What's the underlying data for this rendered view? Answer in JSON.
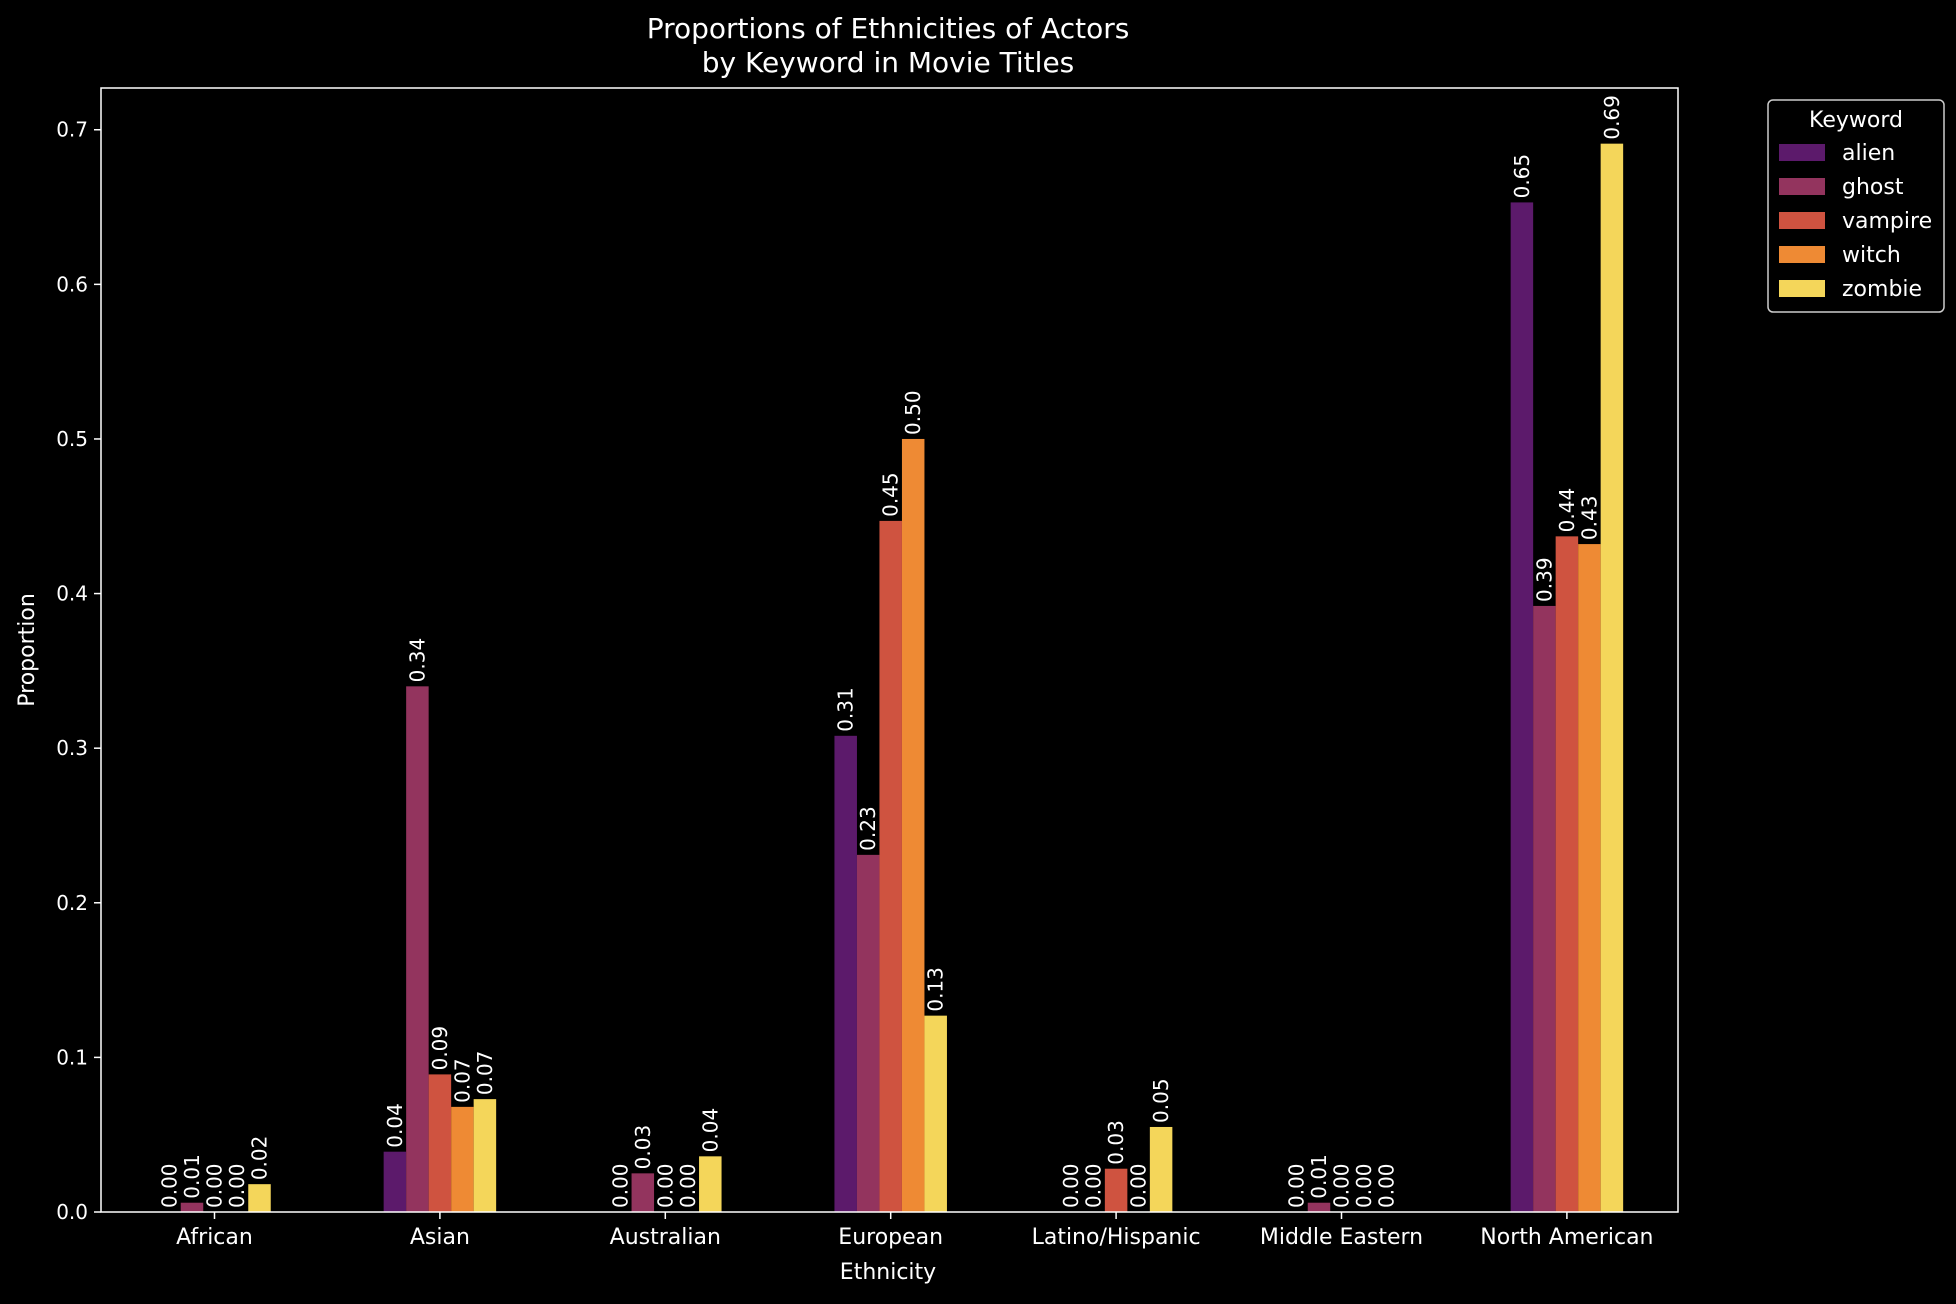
{
  "chart_data": {
    "type": "bar",
    "title_line1": "Proportions of Ethnicities of Actors",
    "title_line2": "by Keyword in Movie Titles",
    "xlabel": "Ethnicity",
    "ylabel": "Proportion",
    "ylim": [
      0,
      0.727
    ],
    "yticks": [
      "0.0",
      "0.1",
      "0.2",
      "0.3",
      "0.4",
      "0.5",
      "0.6",
      "0.7"
    ],
    "grid": false,
    "categories": [
      "African",
      "Asian",
      "Australian",
      "European",
      "Latino/Hispanic",
      "Middle Eastern",
      "North American"
    ],
    "legend": {
      "title": "Keyword",
      "placement": "outside top-right"
    },
    "series": [
      {
        "name": "alien",
        "color": "#5c1a6b",
        "values": [
          0.0,
          0.039,
          0.0,
          0.308,
          0.0,
          0.0,
          0.653
        ],
        "labels": [
          "0.00",
          "0.04",
          "0.00",
          "0.31",
          "0.00",
          "0.00",
          "0.65"
        ]
      },
      {
        "name": "ghost",
        "color": "#93345e",
        "values": [
          0.006,
          0.34,
          0.025,
          0.231,
          0.0,
          0.006,
          0.392
        ],
        "labels": [
          "0.01",
          "0.34",
          "0.03",
          "0.23",
          "0.00",
          "0.01",
          "0.39"
        ]
      },
      {
        "name": "vampire",
        "color": "#cf5340",
        "values": [
          0.0,
          0.089,
          0.0,
          0.447,
          0.028,
          0.0,
          0.437
        ],
        "labels": [
          "0.00",
          "0.09",
          "0.00",
          "0.45",
          "0.03",
          "0.00",
          "0.44"
        ]
      },
      {
        "name": "witch",
        "color": "#ee8a34",
        "values": [
          0.0,
          0.068,
          0.0,
          0.5,
          0.0,
          0.0,
          0.432
        ],
        "labels": [
          "0.00",
          "0.07",
          "0.00",
          "0.50",
          "0.00",
          "0.00",
          "0.43"
        ]
      },
      {
        "name": "zombie",
        "color": "#f4d65a",
        "values": [
          0.018,
          0.073,
          0.036,
          0.127,
          0.055,
          0.0,
          0.691
        ],
        "labels": [
          "0.02",
          "0.07",
          "0.04",
          "0.13",
          "0.05",
          "0.00",
          "0.69"
        ]
      }
    ]
  }
}
